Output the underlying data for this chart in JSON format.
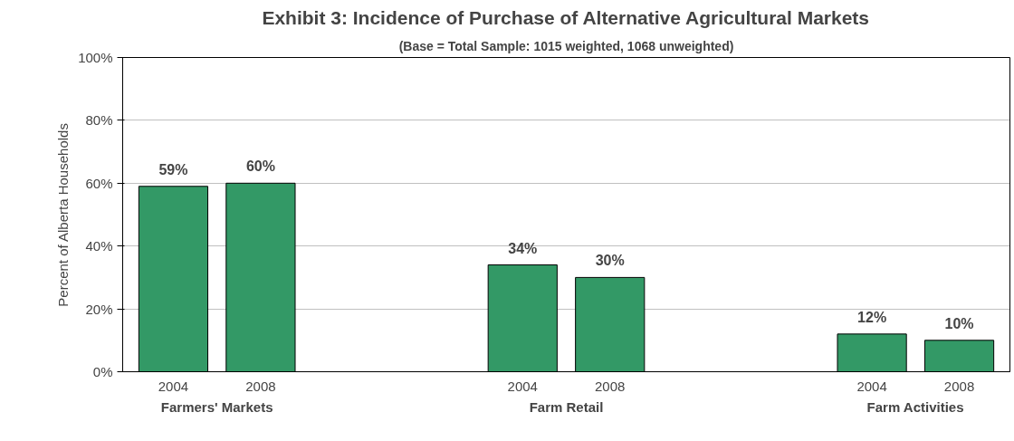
{
  "chart_data": {
    "type": "bar",
    "title": "Exhibit 3: Incidence of Purchase of Alternative Agricultural Markets",
    "subtitle": "(Base = Total Sample: 1015 weighted, 1068 unweighted)",
    "ylabel": "Percent of Alberta Households",
    "categories": [
      "2004",
      "2008",
      null,
      null,
      "2004",
      "2008",
      null,
      null,
      "2004",
      "2008"
    ],
    "values": [
      59,
      60,
      null,
      null,
      34,
      30,
      null,
      null,
      12,
      10
    ],
    "value_labels": [
      "59%",
      "60%",
      null,
      null,
      "34%",
      "30%",
      null,
      null,
      "12%",
      "10%"
    ],
    "color": "#339966",
    "annotations": [
      "Farmers' Markets",
      "Farm Retail",
      "Farm Activities"
    ],
    "ylim": [
      0,
      100
    ],
    "yticks": [
      {
        "value": 0,
        "label": "0%"
      },
      {
        "value": 20,
        "label": "20%"
      },
      {
        "value": 40,
        "label": "40%"
      },
      {
        "value": 60,
        "label": "60%"
      },
      {
        "value": 80,
        "label": "80%"
      },
      {
        "value": 100,
        "label": "100%"
      }
    ],
    "grid": "y"
  }
}
